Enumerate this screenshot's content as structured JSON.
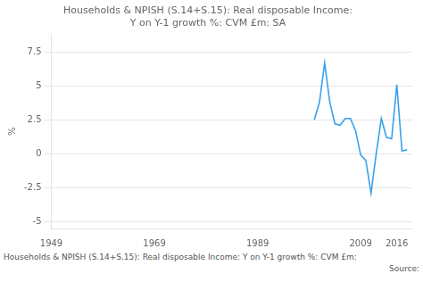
{
  "chart_data": {
    "type": "line",
    "title": "Households & NPISH (S.14+S.15): Real disposable Income:\nY on Y-1 growth %: CVM £m: SA",
    "ylabel": "%",
    "annotations": [
      "Households & NPISH (S.14+S.15): Real disposable Income: Y on Y-1 growth %: CVM £m:",
      "Source:"
    ],
    "x": [
      2000,
      2001,
      2002,
      2003,
      2004,
      2005,
      2006,
      2007,
      2008,
      2009,
      2010,
      2011,
      2012,
      2013,
      2014,
      2015,
      2016,
      2017,
      2018
    ],
    "values": [
      2.5,
      3.8,
      6.7,
      3.8,
      2.2,
      2.1,
      2.6,
      2.6,
      1.7,
      -0.1,
      -0.5,
      -2.9,
      0.0,
      2.6,
      1.2,
      1.1,
      5.1,
      0.2,
      0.3
    ],
    "xlim": [
      1949,
      2019
    ],
    "xticks": [
      1949,
      1969,
      1989,
      2009,
      2016
    ],
    "ylim": [
      -5.5,
      8.8
    ],
    "yticks": [
      -5,
      -2.5,
      0,
      2.5,
      5,
      7.5
    ],
    "grid": true
  }
}
